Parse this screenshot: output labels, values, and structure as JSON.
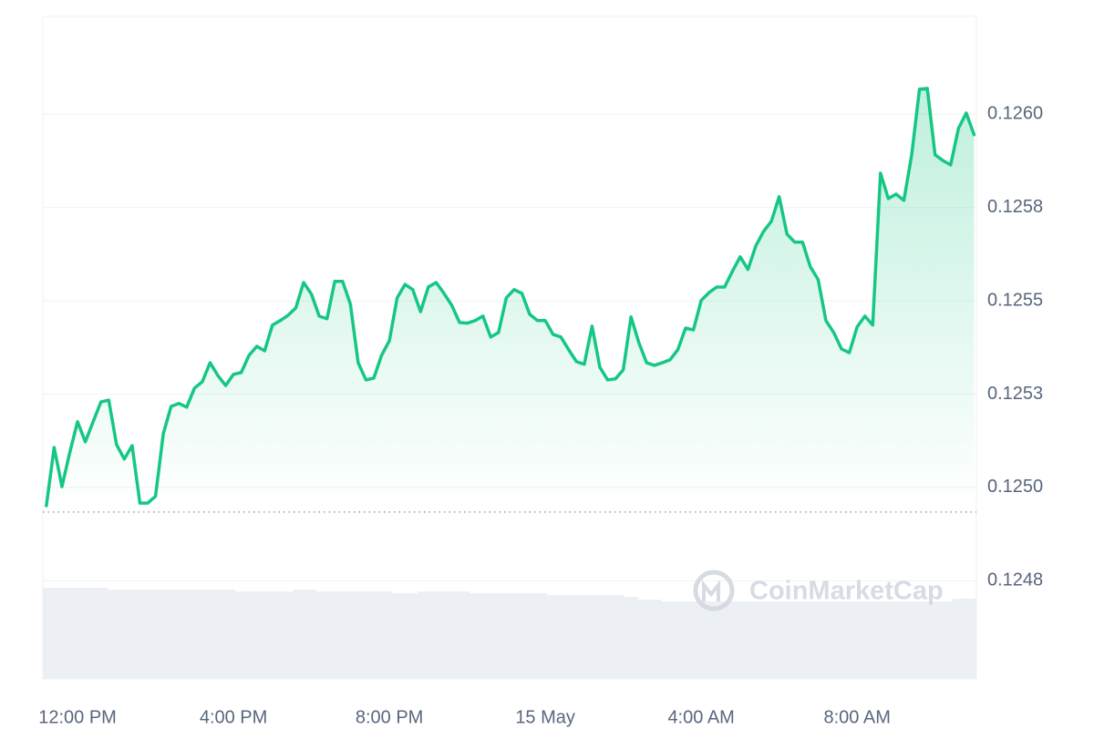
{
  "chart_data": {
    "type": "line",
    "watermark": "CoinMarketCap",
    "x": [
      -0.8,
      -0.6,
      -0.4,
      -0.2,
      0,
      0.2,
      0.4,
      0.6,
      0.8,
      1,
      1.2,
      1.4,
      1.6,
      1.8,
      2,
      2.2,
      2.4,
      2.6,
      2.8,
      3,
      3.2,
      3.4,
      3.6,
      3.8,
      4,
      4.2,
      4.4,
      4.6,
      4.8,
      5,
      5.2,
      5.4,
      5.6,
      5.8,
      6,
      6.2,
      6.4,
      6.6,
      6.8,
      7,
      7.2,
      7.4,
      7.6,
      7.8,
      8,
      8.2,
      8.4,
      8.6,
      8.8,
      9,
      9.2,
      9.4,
      9.6,
      9.8,
      10,
      10.2,
      10.4,
      10.6,
      10.8,
      11,
      11.2,
      11.4,
      11.6,
      11.8,
      12,
      12.2,
      12.4,
      12.6,
      12.8,
      13,
      13.2,
      13.4,
      13.6,
      13.8,
      14,
      14.2,
      14.4,
      14.6,
      14.8,
      15,
      15.2,
      15.4,
      15.6,
      15.8,
      16,
      16.2,
      16.4,
      16.6,
      16.8,
      17,
      17.2,
      17.4,
      17.6,
      17.8,
      18,
      18.2,
      18.4,
      18.6,
      18.8,
      19,
      19.2,
      19.4,
      19.6,
      19.8,
      20,
      20.2,
      20.4,
      20.6,
      20.8,
      21,
      21.2,
      21.4,
      21.6,
      21.8,
      22,
      22.2,
      22.4,
      22.6,
      22.8,
      23
    ],
    "values": [
      0.124951,
      0.125107,
      0.125002,
      0.125093,
      0.125176,
      0.125122,
      0.125176,
      0.125229,
      0.125234,
      0.125115,
      0.125076,
      0.125112,
      0.124958,
      0.124958,
      0.124976,
      0.125144,
      0.125217,
      0.125225,
      0.125215,
      0.125266,
      0.125283,
      0.125334,
      0.1253,
      0.125273,
      0.125303,
      0.125308,
      0.125354,
      0.125378,
      0.125366,
      0.125435,
      0.125447,
      0.125461,
      0.125481,
      0.125549,
      0.125518,
      0.125459,
      0.125452,
      0.125552,
      0.125552,
      0.125491,
      0.125334,
      0.125288,
      0.125293,
      0.125354,
      0.125393,
      0.125508,
      0.125544,
      0.12553,
      0.125471,
      0.125537,
      0.125549,
      0.12552,
      0.125488,
      0.125442,
      0.12544,
      0.125447,
      0.125459,
      0.125403,
      0.125415,
      0.125508,
      0.12553,
      0.12552,
      0.125464,
      0.125447,
      0.125447,
      0.12541,
      0.125403,
      0.125369,
      0.125337,
      0.12533,
      0.125432,
      0.125322,
      0.125288,
      0.125291,
      0.125315,
      0.125457,
      0.125388,
      0.125334,
      0.125327,
      0.125334,
      0.125342,
      0.125369,
      0.125427,
      0.125422,
      0.125501,
      0.125522,
      0.125537,
      0.125537,
      0.125579,
      0.125618,
      0.125584,
      0.125647,
      0.125686,
      0.125713,
      0.125779,
      0.125679,
      0.125657,
      0.125657,
      0.125591,
      0.125557,
      0.125447,
      0.125415,
      0.125371,
      0.125361,
      0.12543,
      0.125459,
      0.125435,
      0.125842,
      0.125774,
      0.125786,
      0.125769,
      0.125891,
      0.126067,
      0.126069,
      0.125891,
      0.125876,
      0.125864,
      0.125962,
      0.126003,
      0.125945
    ],
    "color": "#16c784",
    "baseline": 0.124934,
    "xlim": [
      -0.89,
      23.06
    ],
    "xticks": [
      {
        "value": 0,
        "label": "12:00 PM"
      },
      {
        "value": 4,
        "label": "4:00 PM"
      },
      {
        "value": 8,
        "label": "8:00 PM"
      },
      {
        "value": 12,
        "label": "15 May"
      },
      {
        "value": 16,
        "label": "4:00 AM"
      },
      {
        "value": 20,
        "label": "8:00 AM"
      }
    ],
    "ylim": [
      0.124487,
      0.126262
    ],
    "yticks": [
      {
        "value": 0.126,
        "label": "0.1260"
      },
      {
        "value": 0.12575,
        "label": "0.1258"
      },
      {
        "value": 0.1255,
        "label": "0.1255"
      },
      {
        "value": 0.12525,
        "label": "0.1253"
      },
      {
        "value": 0.125,
        "label": "0.1250"
      },
      {
        "value": 0.12475,
        "label": "0.1248"
      }
    ],
    "grid": true
  }
}
